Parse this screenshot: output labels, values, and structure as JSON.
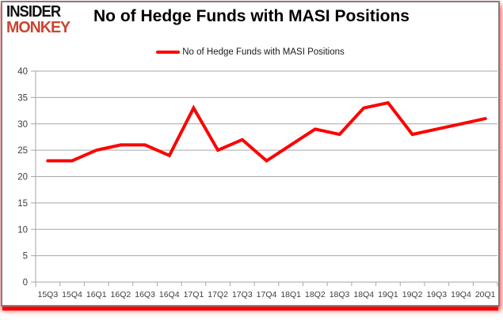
{
  "logo": {
    "line1": "INSIDER",
    "line2": "MONKEY"
  },
  "header": {
    "title": "No of Hedge Funds with MASI Positions"
  },
  "legend": {
    "label": "No of Hedge Funds with MASI Positions",
    "line_color": "#fe0000"
  },
  "colors": {
    "series_red": "#fe0000",
    "accent_band_red": "#fe0000",
    "logo_red": "#cc4431",
    "grid_gray": "#a6a6a6",
    "frame_border_gray": "#7f7f7f",
    "tick_text": "#3d3d3d"
  },
  "chart_data": {
    "type": "line",
    "title": "No of Hedge Funds with MASI Positions",
    "categories": [
      "15Q3",
      "15Q4",
      "16Q1",
      "16Q2",
      "16Q3",
      "16Q4",
      "17Q1",
      "17Q2",
      "17Q3",
      "17Q4",
      "18Q1",
      "18Q2",
      "18Q3",
      "18Q4",
      "19Q1",
      "19Q2",
      "19Q3",
      "19Q4",
      "20Q1"
    ],
    "series": [
      {
        "name": "No of Hedge Funds with MASI Positions",
        "color": "#fe0000",
        "values": [
          23,
          23,
          25,
          26,
          26,
          24,
          33,
          25,
          27,
          23,
          26,
          29,
          28,
          33,
          34,
          28,
          29,
          30,
          31
        ]
      }
    ],
    "xlabel": "",
    "ylabel": "",
    "ylim": [
      0,
      40
    ],
    "ytick_step": 5,
    "grid": "horizontal",
    "legend_position": "top-center"
  }
}
